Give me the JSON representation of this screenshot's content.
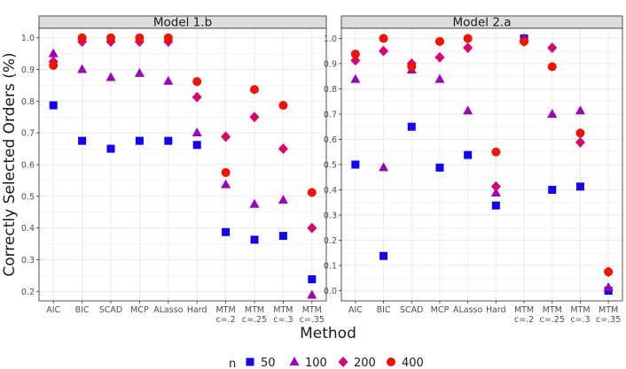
{
  "figure": {
    "ylabel": "Correctly Selected Orders (%)",
    "xlabel": "Method",
    "legend_title": "n"
  },
  "colors": {
    "n50": "#1400f0",
    "n100": "#9a00b6",
    "n200": "#d8006e",
    "n400": "#ee1400",
    "panel_bg": "#ffffff",
    "panel_border": "#2b2b2b",
    "strip_bg": "#dcdcdc",
    "grid": "#ebebeb",
    "text": "#1a1a1a",
    "tick_text": "#4d4d4d"
  },
  "legend": [
    {
      "label": "50",
      "shape": "square",
      "color_key": "n50"
    },
    {
      "label": "100",
      "shape": "triangle",
      "color_key": "n100"
    },
    {
      "label": "200",
      "shape": "diamond",
      "color_key": "n200"
    },
    {
      "label": "400",
      "shape": "circle",
      "color_key": "n400"
    }
  ],
  "chart_data": [
    {
      "type": "scatter",
      "title": "Model 1.b",
      "xlabel": "Method",
      "ylabel": "Correctly Selected Orders (%)",
      "ylim": [
        0.17,
        1.03
      ],
      "yticks": [
        0.2,
        0.3,
        0.4,
        0.5,
        0.6,
        0.7,
        0.8,
        0.9,
        1.0
      ],
      "ytick_labels": [
        "0.2",
        "0.3",
        "0.4",
        "0.5",
        "0.6",
        "0.7",
        "0.8",
        "0.9",
        "1.0"
      ],
      "categories": [
        [
          "AIC"
        ],
        [
          "BIC"
        ],
        [
          "SCAD"
        ],
        [
          "MCP"
        ],
        [
          "ALasso"
        ],
        [
          "Hard"
        ],
        [
          "MTM",
          "c=.2"
        ],
        [
          "MTM",
          "c=.25"
        ],
        [
          "MTM",
          "c=.3"
        ],
        [
          "MTM",
          "c=.35"
        ]
      ],
      "series": [
        {
          "name": "50",
          "shape": "square",
          "values": [
            0.787,
            0.675,
            0.65,
            0.675,
            0.675,
            0.662,
            0.387,
            0.363,
            0.375,
            0.238
          ]
        },
        {
          "name": "100",
          "shape": "triangle",
          "values": [
            0.95,
            0.9,
            0.875,
            0.888,
            0.863,
            0.7,
            0.537,
            0.475,
            0.488,
            0.188
          ]
        },
        {
          "name": "200",
          "shape": "diamond",
          "values": [
            0.925,
            0.988,
            0.988,
            0.988,
            0.988,
            0.813,
            0.688,
            0.75,
            0.65,
            0.4
          ]
        },
        {
          "name": "400",
          "shape": "circle",
          "values": [
            0.913,
            1.0,
            1.0,
            1.0,
            1.0,
            0.862,
            0.575,
            0.837,
            0.787,
            0.512
          ]
        }
      ]
    },
    {
      "type": "scatter",
      "title": "Model 2.a",
      "xlabel": "Method",
      "ylabel": "Correctly Selected Orders (%)",
      "ylim": [
        -0.04,
        1.04
      ],
      "yticks": [
        0.0,
        0.1,
        0.2,
        0.3,
        0.4,
        0.5,
        0.6,
        0.7,
        0.8,
        0.9,
        1.0
      ],
      "ytick_labels": [
        "0.0",
        "0.1",
        "0.2",
        "0.3",
        "0.4",
        "0.5",
        "0.6",
        "0.7",
        "0.8",
        "0.9",
        "1.0"
      ],
      "categories": [
        [
          "AIC"
        ],
        [
          "BIC"
        ],
        [
          "SCAD"
        ],
        [
          "MCP"
        ],
        [
          "ALasso"
        ],
        [
          "Hard"
        ],
        [
          "MTM",
          "c=.2"
        ],
        [
          "MTM",
          "c=.25"
        ],
        [
          "MTM",
          "c=.3"
        ],
        [
          "MTM",
          "c=.35"
        ]
      ],
      "series": [
        {
          "name": "50",
          "shape": "square",
          "values": [
            0.5,
            0.138,
            0.65,
            0.488,
            0.538,
            0.338,
            1.0,
            0.4,
            0.413,
            0.0
          ]
        },
        {
          "name": "100",
          "shape": "triangle",
          "values": [
            0.838,
            0.488,
            0.875,
            0.838,
            0.713,
            0.388,
            1.0,
            0.7,
            0.713,
            0.013
          ]
        },
        {
          "name": "200",
          "shape": "diamond",
          "values": [
            0.913,
            0.95,
            0.9,
            0.925,
            0.963,
            0.413,
            0.988,
            0.963,
            0.588,
            0.075
          ]
        },
        {
          "name": "400",
          "shape": "circle",
          "values": [
            0.938,
            1.0,
            0.888,
            0.988,
            1.0,
            0.55,
            0.988,
            0.888,
            0.625,
            0.075
          ]
        }
      ]
    }
  ]
}
